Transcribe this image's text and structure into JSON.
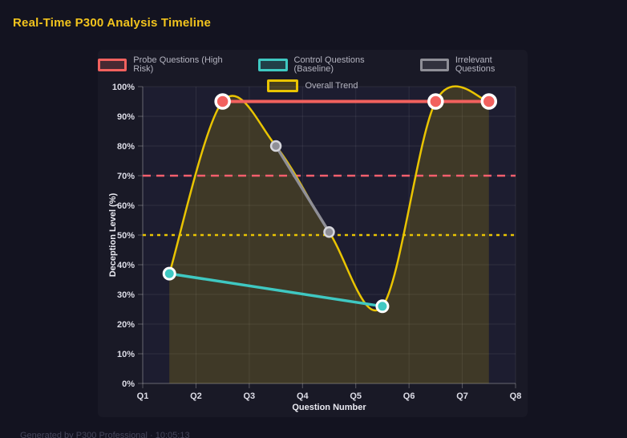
{
  "header": {
    "title": "Real-Time P300 Analysis Timeline"
  },
  "footer": {
    "text": "Generated by P300 Professional · 10:05:13"
  },
  "colors": {
    "page_bg": "#131320",
    "panel_bg": "#191926",
    "plot_bg": "#1d1d30",
    "grid": "rgba(255,255,255,0.08)",
    "axis_line": "rgba(255,255,255,0.28)",
    "tick_text": "#dcdce6",
    "title_yellow": "#f2c41d",
    "legend_text": "#b4b4c0"
  },
  "chart_data": {
    "type": "line",
    "title": "Real-Time P300 Analysis Timeline",
    "xlabel": "Question Number",
    "ylabel": "Deception Level (%)",
    "x_range": [
      1,
      8
    ],
    "ylim": [
      0,
      100
    ],
    "y_tick_step": 10,
    "x_tick_labels": [
      "Q1",
      "Q2",
      "Q3",
      "Q4",
      "Q5",
      "Q6",
      "Q7",
      "Q8"
    ],
    "y_tick_labels": [
      "0%",
      "10%",
      "20%",
      "30%",
      "40%",
      "50%",
      "60%",
      "70%",
      "80%",
      "90%",
      "100%"
    ],
    "grid": true,
    "legend_position": "top",
    "series": [
      {
        "name": "Probe Questions (High Risk)",
        "color": "#f2615e",
        "point_border": "#ffffff",
        "points": [
          [
            2.5,
            95
          ],
          [
            6.5,
            95
          ],
          [
            7.5,
            95
          ]
        ],
        "line_width": 4,
        "point_radius": 8.5,
        "point_border_width": 3.5,
        "smooth": false,
        "fill": false
      },
      {
        "name": "Control Questions (Baseline)",
        "color": "#3fc8c2",
        "point_border": "#ffffff",
        "points": [
          [
            1.5,
            37
          ],
          [
            5.5,
            26
          ]
        ],
        "line_width": 3.5,
        "point_radius": 7,
        "point_border_width": 3,
        "smooth": false,
        "fill": false
      },
      {
        "name": "Irrelevant Questions",
        "color": "#8f8f97",
        "point_border": "#d6d6dc",
        "points": [
          [
            3.5,
            80
          ],
          [
            4.5,
            51
          ]
        ],
        "line_width": 3.5,
        "point_radius": 6,
        "point_border_width": 2.5,
        "smooth": false,
        "fill": false
      },
      {
        "name": "Overall Trend",
        "color": "#e9c402",
        "point_border": "none",
        "points": [
          [
            1.5,
            37
          ],
          [
            2.5,
            95
          ],
          [
            3.5,
            80
          ],
          [
            4.5,
            51
          ],
          [
            5.5,
            26
          ],
          [
            6.5,
            95
          ],
          [
            7.5,
            95
          ]
        ],
        "line_width": 2.5,
        "point_radius": 0,
        "point_border_width": 0,
        "smooth": true,
        "fill": true,
        "fill_alpha": 0.17
      }
    ],
    "thresholds": [
      {
        "value": 70,
        "color": "#f45f6d",
        "dash": "10,7",
        "width": 2.5
      },
      {
        "value": 50,
        "color": "#e9c402",
        "dash": "4,5",
        "width": 2.5
      }
    ]
  }
}
